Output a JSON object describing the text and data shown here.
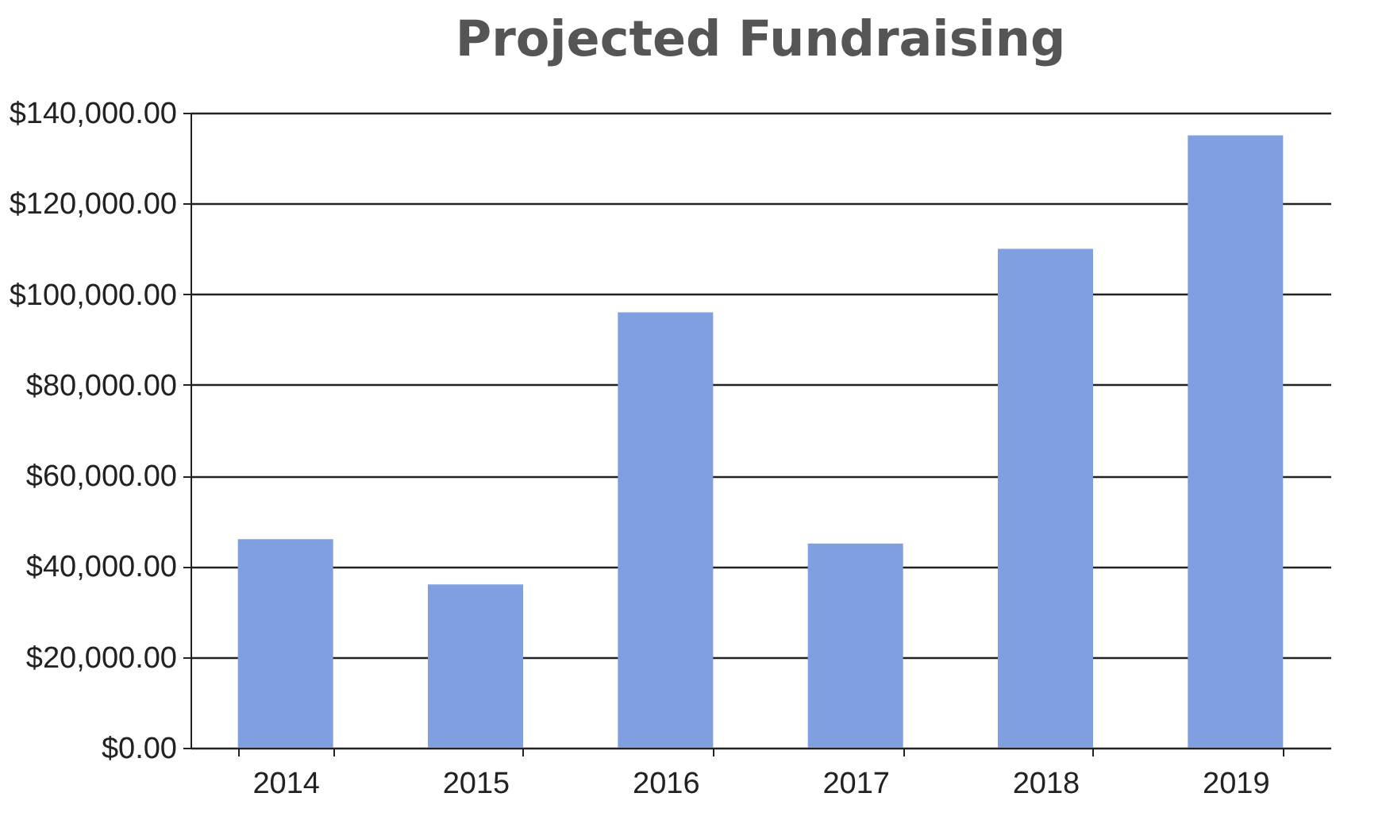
{
  "chart_data": {
    "type": "bar",
    "title": "Projected Fundraising",
    "categories": [
      "2014",
      "2015",
      "2016",
      "2017",
      "2018",
      "2019"
    ],
    "values": [
      46000,
      36000,
      96000,
      45000,
      110000,
      135000
    ],
    "color": "#7f9fe0",
    "ylim": [
      0,
      140000
    ],
    "yticks": [
      {
        "value": 0,
        "label": "$0.00"
      },
      {
        "value": 20000,
        "label": "$20,000.00"
      },
      {
        "value": 40000,
        "label": "$40,000.00"
      },
      {
        "value": 60000,
        "label": "$60,000.00"
      },
      {
        "value": 80000,
        "label": "$80,000.00"
      },
      {
        "value": 100000,
        "label": "$100,000.00"
      },
      {
        "value": 120000,
        "label": "$120,000.00"
      },
      {
        "value": 140000,
        "label": "$140,000.00"
      }
    ],
    "grid": "y"
  }
}
